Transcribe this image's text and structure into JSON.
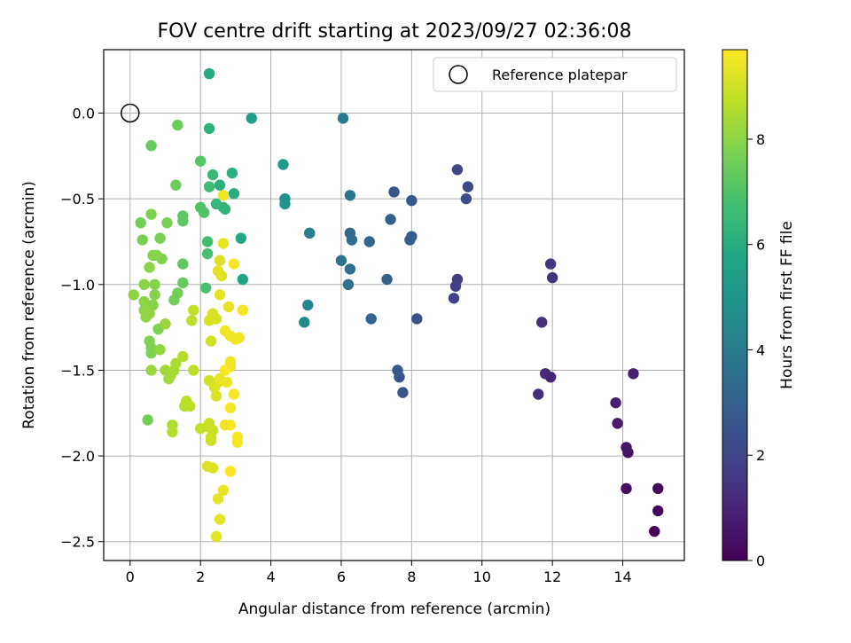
{
  "chart_data": {
    "type": "scatter",
    "title": "FOV centre drift starting at 2023/09/27 02:36:08",
    "xlabel": "Angular distance from reference (arcmin)",
    "ylabel": "Rotation from reference (arcmin)",
    "xlim": [
      -0.75,
      15.75
    ],
    "ylim": [
      -2.61,
      0.37
    ],
    "xticks": [
      0,
      2,
      4,
      6,
      8,
      10,
      12,
      14
    ],
    "yticks": [
      0.0,
      -0.5,
      -1.0,
      -1.5,
      -2.0,
      -2.5
    ],
    "xtick_labels": [
      "0",
      "2",
      "4",
      "6",
      "8",
      "10",
      "12",
      "14"
    ],
    "ytick_labels": [
      "0.0",
      "−0.5",
      "−1.0",
      "−1.5",
      "−2.0",
      "−2.5"
    ],
    "grid": true,
    "legend": {
      "position": "top-right",
      "entries": [
        "Reference platepar"
      ]
    },
    "reference_point": {
      "name": "Reference platepar",
      "x": 0,
      "y": 0
    },
    "colorbar": {
      "label": "Hours from first FF file",
      "colormap": "viridis",
      "range": [
        0,
        9.7
      ],
      "ticks": [
        0,
        2,
        4,
        6,
        8
      ],
      "tick_labels": [
        "0",
        "2",
        "4",
        "6",
        "8"
      ]
    },
    "points": [
      [
        14.9,
        -2.44,
        0.1
      ],
      [
        15.0,
        -2.32,
        0.2
      ],
      [
        15.0,
        -2.19,
        0.3
      ],
      [
        14.1,
        -2.19,
        0.4
      ],
      [
        14.15,
        -1.98,
        0.5
      ],
      [
        14.1,
        -1.95,
        0.6
      ],
      [
        13.85,
        -1.81,
        0.7
      ],
      [
        13.8,
        -1.69,
        0.8
      ],
      [
        14.3,
        -1.52,
        0.9
      ],
      [
        11.95,
        -1.54,
        1.0
      ],
      [
        11.8,
        -1.52,
        1.1
      ],
      [
        11.6,
        -1.64,
        1.2
      ],
      [
        11.7,
        -1.22,
        1.3
      ],
      [
        12.0,
        -0.96,
        1.4
      ],
      [
        11.95,
        -0.88,
        1.5
      ],
      [
        9.3,
        -0.97,
        1.7
      ],
      [
        9.25,
        -1.01,
        1.8
      ],
      [
        9.2,
        -1.08,
        1.9
      ],
      [
        9.3,
        -0.33,
        2.0
      ],
      [
        9.6,
        -0.43,
        2.1
      ],
      [
        9.55,
        -0.5,
        2.2
      ],
      [
        8.15,
        -1.2,
        2.4
      ],
      [
        7.75,
        -1.63,
        2.5
      ],
      [
        7.65,
        -1.54,
        2.6
      ],
      [
        7.6,
        -1.5,
        2.7
      ],
      [
        7.5,
        -0.46,
        2.6
      ],
      [
        8.0,
        -0.51,
        2.7
      ],
      [
        8.0,
        -0.72,
        2.8
      ],
      [
        7.95,
        -0.74,
        2.9
      ],
      [
        7.4,
        -0.62,
        2.9
      ],
      [
        7.3,
        -0.97,
        3.0
      ],
      [
        6.85,
        -1.2,
        3.1
      ],
      [
        6.8,
        -0.75,
        3.2
      ],
      [
        6.25,
        -0.7,
        3.3
      ],
      [
        6.3,
        -0.74,
        3.4
      ],
      [
        6.25,
        -0.91,
        3.5
      ],
      [
        6.2,
        -1.0,
        3.6
      ],
      [
        6.0,
        -0.86,
        3.7
      ],
      [
        6.25,
        -0.48,
        3.8
      ],
      [
        6.05,
        -0.03,
        3.9
      ],
      [
        5.1,
        -0.7,
        4.2
      ],
      [
        5.05,
        -1.12,
        4.4
      ],
      [
        4.95,
        -1.22,
        4.6
      ],
      [
        4.4,
        -0.5,
        4.8
      ],
      [
        4.4,
        -0.53,
        5.0
      ],
      [
        4.35,
        -0.3,
        5.2
      ],
      [
        3.45,
        -0.03,
        5.5
      ],
      [
        3.2,
        -0.97,
        5.6
      ],
      [
        3.15,
        -0.73,
        5.8
      ],
      [
        2.95,
        -0.47,
        6.0
      ],
      [
        2.9,
        -0.35,
        6.1
      ],
      [
        2.7,
        -0.56,
        6.2
      ],
      [
        2.65,
        -0.55,
        6.3
      ],
      [
        2.55,
        -0.42,
        6.1
      ],
      [
        2.45,
        -0.53,
        6.4
      ],
      [
        2.35,
        -0.36,
        6.5
      ],
      [
        2.25,
        -0.43,
        6.6
      ],
      [
        2.25,
        0.23,
        5.9
      ],
      [
        2.25,
        -0.09,
        6.2
      ],
      [
        2.2,
        -0.75,
        6.7
      ],
      [
        2.2,
        -0.82,
        6.8
      ],
      [
        2.15,
        -1.02,
        6.9
      ],
      [
        2.1,
        -0.58,
        7.0
      ],
      [
        2.0,
        -0.55,
        7.0
      ],
      [
        2.0,
        -0.28,
        7.1
      ],
      [
        1.5,
        -0.6,
        7.2
      ],
      [
        1.5,
        -0.63,
        7.3
      ],
      [
        1.5,
        -0.88,
        7.3
      ],
      [
        1.5,
        -0.99,
        7.4
      ],
      [
        1.35,
        -0.07,
        7.5
      ],
      [
        1.3,
        -0.42,
        7.5
      ],
      [
        1.35,
        -1.05,
        7.6
      ],
      [
        1.25,
        -1.09,
        7.6
      ],
      [
        1.05,
        -0.64,
        7.7
      ],
      [
        0.85,
        -0.73,
        7.7
      ],
      [
        0.9,
        -0.85,
        7.8
      ],
      [
        0.8,
        -1.26,
        7.8
      ],
      [
        0.6,
        -0.59,
        7.8
      ],
      [
        0.65,
        -0.83,
        7.9
      ],
      [
        0.7,
        -1.0,
        7.9
      ],
      [
        0.6,
        -0.19,
        7.4
      ],
      [
        0.75,
        -0.83,
        7.9
      ],
      [
        0.7,
        -1.06,
        7.9
      ],
      [
        0.65,
        -1.12,
        7.9
      ],
      [
        0.55,
        -0.9,
        8.0
      ],
      [
        0.3,
        -0.64,
        7.6
      ],
      [
        0.35,
        -0.74,
        7.7
      ],
      [
        0.4,
        -1.0,
        8.0
      ],
      [
        0.5,
        -1.15,
        8.0
      ],
      [
        0.4,
        -1.1,
        8.0
      ],
      [
        0.1,
        -1.06,
        8.0
      ],
      [
        0.55,
        -1.17,
        8.1
      ],
      [
        0.45,
        -1.19,
        8.1
      ],
      [
        0.4,
        -1.15,
        8.1
      ],
      [
        0.6,
        -1.37,
        7.8
      ],
      [
        0.6,
        -1.4,
        7.8
      ],
      [
        0.55,
        -1.33,
        7.8
      ],
      [
        0.5,
        -1.79,
        7.6
      ],
      [
        0.85,
        -1.38,
        8.1
      ],
      [
        0.6,
        -1.5,
        8.2
      ],
      [
        1.0,
        -1.23,
        8.2
      ],
      [
        1.0,
        -1.5,
        8.3
      ],
      [
        1.1,
        -1.55,
        8.3
      ],
      [
        1.15,
        -1.53,
        8.4
      ],
      [
        1.25,
        -1.5,
        8.4
      ],
      [
        1.3,
        -1.46,
        8.5
      ],
      [
        1.2,
        -1.82,
        8.5
      ],
      [
        1.2,
        -1.86,
        8.6
      ],
      [
        1.5,
        -1.42,
        8.6
      ],
      [
        1.55,
        -1.71,
        8.6
      ],
      [
        1.6,
        -1.68,
        8.7
      ],
      [
        1.7,
        -1.71,
        8.7
      ],
      [
        1.8,
        -1.5,
        8.7
      ],
      [
        1.75,
        -1.21,
        8.7
      ],
      [
        1.8,
        -1.15,
        8.8
      ],
      [
        2.0,
        -1.84,
        8.8
      ],
      [
        2.2,
        -1.83,
        8.8
      ],
      [
        2.25,
        -1.81,
        8.9
      ],
      [
        2.35,
        -1.85,
        8.9
      ],
      [
        2.3,
        -1.89,
        8.9
      ],
      [
        2.3,
        -1.91,
        9.0
      ],
      [
        2.25,
        -1.56,
        9.0
      ],
      [
        2.3,
        -1.33,
        9.0
      ],
      [
        2.25,
        -1.21,
        9.1
      ],
      [
        2.35,
        -1.17,
        9.1
      ],
      [
        2.45,
        -1.2,
        9.1
      ],
      [
        2.4,
        -1.6,
        9.1
      ],
      [
        2.45,
        -1.65,
        9.2
      ],
      [
        2.5,
        -1.57,
        9.2
      ],
      [
        2.2,
        -2.06,
        9.2
      ],
      [
        2.35,
        -2.07,
        9.2
      ],
      [
        2.5,
        -2.25,
        9.3
      ],
      [
        2.55,
        -2.37,
        9.3
      ],
      [
        2.45,
        -2.47,
        9.3
      ],
      [
        2.65,
        -2.2,
        9.4
      ],
      [
        2.55,
        -0.86,
        9.2
      ],
      [
        2.6,
        -0.95,
        9.2
      ],
      [
        2.5,
        -0.92,
        9.3
      ],
      [
        2.65,
        -0.48,
        9.5
      ],
      [
        2.65,
        -0.76,
        9.4
      ],
      [
        2.55,
        -1.06,
        9.3
      ],
      [
        2.7,
        -1.27,
        9.5
      ],
      [
        2.8,
        -1.13,
        9.4
      ],
      [
        2.85,
        -1.3,
        9.5
      ],
      [
        3.0,
        -1.32,
        9.5
      ],
      [
        3.1,
        -1.31,
        9.5
      ],
      [
        3.2,
        -1.15,
        9.6
      ],
      [
        2.95,
        -0.88,
        9.6
      ],
      [
        2.85,
        -1.45,
        9.5
      ],
      [
        2.85,
        -1.48,
        9.5
      ],
      [
        2.7,
        -1.5,
        9.6
      ],
      [
        2.95,
        -1.64,
        9.6
      ],
      [
        2.85,
        -1.72,
        9.6
      ],
      [
        2.85,
        -1.82,
        9.6
      ],
      [
        3.05,
        -1.89,
        9.6
      ],
      [
        3.05,
        -1.92,
        9.6
      ],
      [
        2.85,
        -2.09,
        9.7
      ],
      [
        2.7,
        -1.82,
        9.5
      ],
      [
        2.75,
        -1.57,
        9.5
      ],
      [
        2.55,
        -1.55,
        9.4
      ]
    ]
  }
}
